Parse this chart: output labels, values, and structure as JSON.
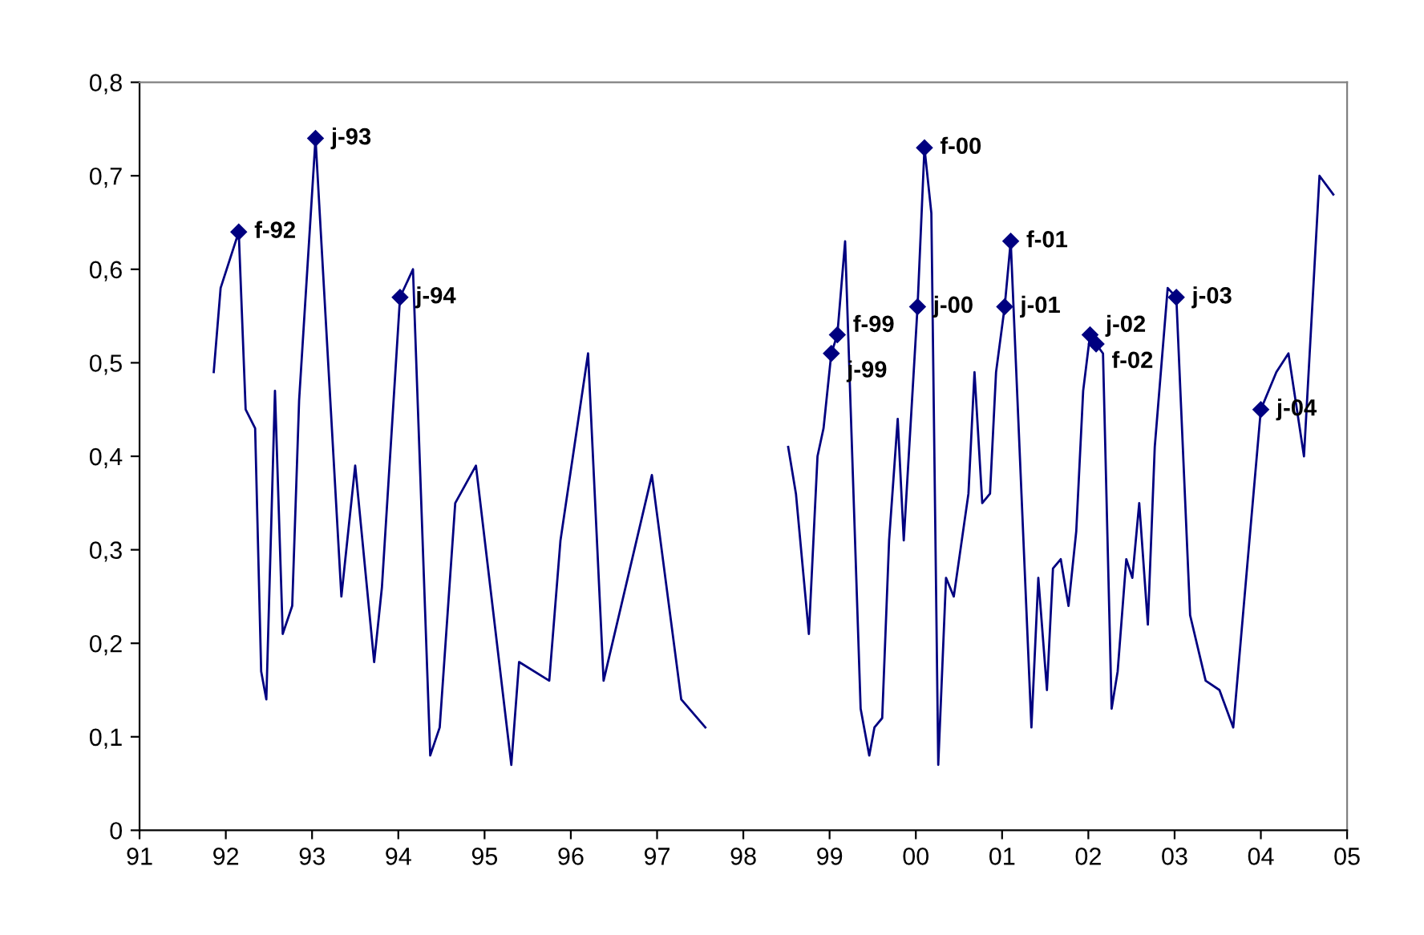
{
  "chart_data": {
    "type": "line",
    "xlim": [
      1991,
      2005
    ],
    "ylim": [
      0,
      0.8
    ],
    "xticks": [
      {
        "value": 1991,
        "label": "91"
      },
      {
        "value": 1992,
        "label": "92"
      },
      {
        "value": 1993,
        "label": "93"
      },
      {
        "value": 1994,
        "label": "94"
      },
      {
        "value": 1995,
        "label": "95"
      },
      {
        "value": 1996,
        "label": "96"
      },
      {
        "value": 1997,
        "label": "97"
      },
      {
        "value": 1998,
        "label": "98"
      },
      {
        "value": 1999,
        "label": "99"
      },
      {
        "value": 2000,
        "label": "00"
      },
      {
        "value": 2001,
        "label": "01"
      },
      {
        "value": 2002,
        "label": "02"
      },
      {
        "value": 2003,
        "label": "03"
      },
      {
        "value": 2004,
        "label": "04"
      },
      {
        "value": 2005,
        "label": "05"
      }
    ],
    "yticks": [
      0,
      {
        "value": 0.1,
        "label": "0,1"
      },
      {
        "value": 0.2,
        "label": "0,2"
      },
      {
        "value": 0.3,
        "label": "0,3"
      },
      {
        "value": 0.4,
        "label": "0,4"
      },
      {
        "value": 0.5,
        "label": "0,5"
      },
      {
        "value": 0.6,
        "label": "0,6"
      },
      {
        "value": 0.7,
        "label": "0,7"
      },
      {
        "value": 0.8,
        "label": "0,8"
      }
    ],
    "grid": false,
    "series": [
      {
        "color": "#000080",
        "marker": "none",
        "x": [
          1991.86,
          1991.94,
          1992.15,
          1992.23,
          1992.34,
          1992.41,
          1992.47,
          1992.57,
          1992.66,
          1992.77,
          1992.85,
          1993.04,
          1993.34,
          1993.5,
          1993.72,
          1993.81,
          1994.02,
          1994.17,
          1994.37,
          1994.48,
          1994.66,
          1994.9,
          1995.31,
          1995.4,
          1995.75,
          1995.88,
          1996.2,
          1996.38,
          1996.94,
          1997.28,
          1997.56,
          1998.0,
          1998.52,
          1998.61,
          1998.76,
          1998.86,
          1998.93,
          1999.02,
          1999.09,
          1999.18,
          1999.36,
          1999.46,
          1999.52,
          1999.61,
          1999.69,
          1999.79,
          1999.86,
          2000.02,
          2000.1,
          2000.18,
          2000.26,
          2000.35,
          2000.44,
          2000.61,
          2000.68,
          2000.77,
          2000.86,
          2000.93,
          2001.03,
          2001.1,
          2001.34,
          2001.42,
          2001.52,
          2001.59,
          2001.68,
          2001.77,
          2001.86,
          2001.94,
          2002.02,
          2002.09,
          2002.17,
          2002.27,
          2002.34,
          2002.44,
          2002.51,
          2002.59,
          2002.69,
          2002.77,
          2002.92,
          2003.02,
          2003.18,
          2003.36,
          2003.52,
          2003.68,
          2003.83,
          2004.0,
          2004.18,
          2004.32,
          2004.5,
          2004.68,
          2004.84
        ],
        "values": [
          0.49,
          0.58,
          0.64,
          0.45,
          0.43,
          0.17,
          0.14,
          0.47,
          0.21,
          0.24,
          0.46,
          0.74,
          0.25,
          0.39,
          0.18,
          0.26,
          0.57,
          0.6,
          0.08,
          0.11,
          0.35,
          0.39,
          0.07,
          0.18,
          0.16,
          0.31,
          0.51,
          0.16,
          0.38,
          0.14,
          0.11,
          null,
          0.41,
          0.36,
          0.21,
          0.4,
          0.43,
          0.51,
          0.53,
          0.63,
          0.13,
          0.08,
          0.11,
          0.12,
          0.31,
          0.44,
          0.31,
          0.56,
          0.73,
          0.66,
          0.07,
          0.27,
          0.25,
          0.36,
          0.49,
          0.35,
          0.36,
          0.49,
          0.56,
          0.63,
          0.11,
          0.27,
          0.15,
          0.28,
          0.29,
          0.24,
          0.32,
          0.47,
          0.53,
          0.52,
          0.51,
          0.13,
          0.17,
          0.29,
          0.27,
          0.35,
          0.22,
          0.41,
          0.58,
          0.57,
          0.23,
          0.16,
          0.15,
          0.11,
          0.27,
          0.45,
          0.49,
          0.51,
          0.4,
          0.7,
          0.68
        ]
      },
      {
        "type": "scatter",
        "color": "#000080",
        "marker": "diamond",
        "x": [
          1992.15,
          1993.04,
          1994.02,
          1999.02,
          1999.09,
          2000.02,
          2000.1,
          2001.03,
          2001.1,
          2002.02,
          2002.09,
          2003.02,
          2004.0
        ],
        "values": [
          0.64,
          0.74,
          0.57,
          0.51,
          0.53,
          0.56,
          0.73,
          0.56,
          0.63,
          0.53,
          0.52,
          0.57,
          0.45
        ]
      }
    ],
    "annotations": [
      {
        "text": "f-92",
        "x": 1992.15,
        "y": 0.64
      },
      {
        "text": "j-93",
        "x": 1993.04,
        "y": 0.74
      },
      {
        "text": "j-94",
        "x": 1994.02,
        "y": 0.57
      },
      {
        "text": "j-99",
        "x": 1999.02,
        "y": 0.51
      },
      {
        "text": "f-99",
        "x": 1999.09,
        "y": 0.53
      },
      {
        "text": "j-00",
        "x": 2000.02,
        "y": 0.56
      },
      {
        "text": "f-00",
        "x": 2000.1,
        "y": 0.73
      },
      {
        "text": "j-01",
        "x": 2001.03,
        "y": 0.56
      },
      {
        "text": "f-01",
        "x": 2001.1,
        "y": 0.63
      },
      {
        "text": "j-02",
        "x": 2002.02,
        "y": 0.53
      },
      {
        "text": "f-02",
        "x": 2002.09,
        "y": 0.52
      },
      {
        "text": "j-03",
        "x": 2003.02,
        "y": 0.57
      },
      {
        "text": "j-04",
        "x": 2004.0,
        "y": 0.45
      }
    ]
  }
}
